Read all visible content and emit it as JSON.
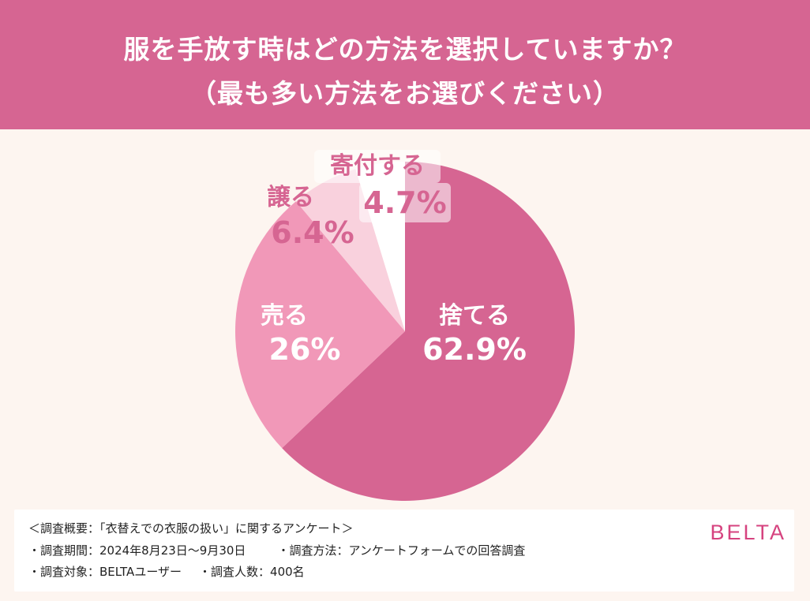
{
  "header": {
    "title_line1": "服を手放す時はどの方法を選択していますか？",
    "title_line2": "（最も多い方法をお選びください）"
  },
  "chart_data": {
    "type": "pie",
    "title": "服を手放す時はどの方法を選択していますか？（最も多い方法をお選びください）",
    "categories": [
      "捨てる",
      "売る",
      "譲る",
      "寄付する"
    ],
    "values": [
      62.9,
      26,
      6.4,
      4.7
    ],
    "value_labels": [
      "62.9%",
      "26%",
      "6.4%",
      "4.7%"
    ],
    "colors": [
      "#d66592",
      "#f198b8",
      "#f9d1dd",
      "#ffffff"
    ],
    "start": "12 o'clock, clockwise",
    "legend": "none"
  },
  "footer": {
    "summary": "＜調査概要：「衣替えでの衣服の扱い」に関するアンケート＞",
    "period": "・調査期間：2024年8月23日〜9月30日",
    "method": "・調査方法：アンケートフォームでの回答調査",
    "target": "・調査対象：BELTAユーザー",
    "count": "・調査人数：400名"
  },
  "brand": "BELTA"
}
